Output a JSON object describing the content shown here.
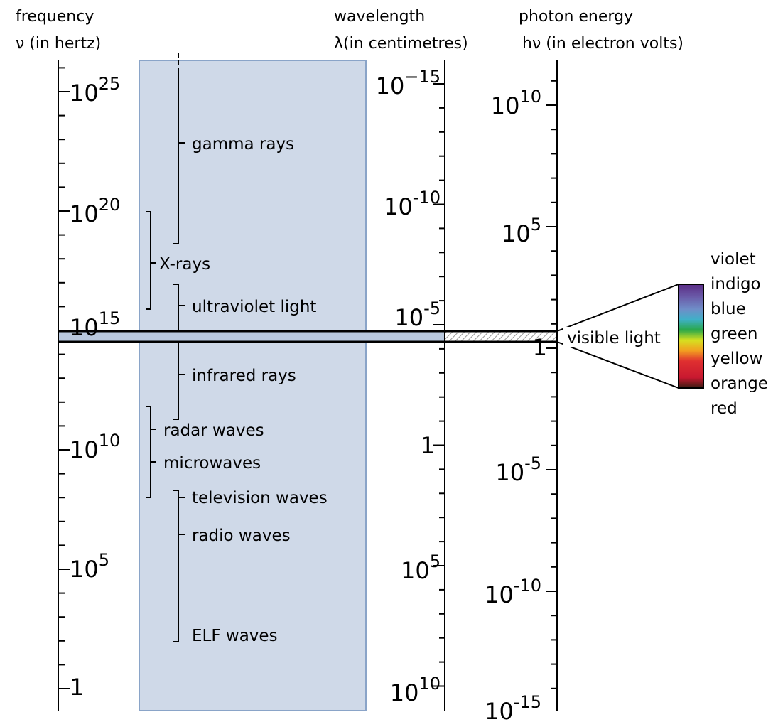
{
  "headers": {
    "frequency": {
      "line1": "frequency",
      "line2": "ν (in hertz)"
    },
    "wavelength": {
      "line1": "wavelength",
      "line2": "λ(in centimetres)"
    },
    "energy": {
      "line1": "photon energy",
      "line2": "hν (in electron volts)"
    }
  },
  "frequency_ticks": [
    {
      "base": "10",
      "exp": "25"
    },
    {
      "base": "10",
      "exp": "20"
    },
    {
      "base": "10",
      "exp": "15"
    },
    {
      "base": "10",
      "exp": "10"
    },
    {
      "base": "10",
      "exp": "5"
    },
    {
      "base": "1",
      "exp": ""
    }
  ],
  "wavelength_ticks": [
    {
      "base": "10",
      "exp": "−15"
    },
    {
      "base": "10",
      "exp": "-10"
    },
    {
      "base": "10",
      "exp": "-5"
    },
    {
      "base": "1",
      "exp": ""
    },
    {
      "base": "10",
      "exp": "5"
    },
    {
      "base": "10",
      "exp": "10"
    }
  ],
  "energy_ticks": [
    {
      "base": "10",
      "exp": "10"
    },
    {
      "base": "10",
      "exp": "5"
    },
    {
      "base": "1",
      "exp": ""
    },
    {
      "base": "10",
      "exp": "-5"
    },
    {
      "base": "10",
      "exp": "-10"
    },
    {
      "base": "10",
      "exp": "-15"
    }
  ],
  "bands": {
    "gamma": "gamma rays",
    "xrays": "X-rays",
    "ultraviolet": "ultraviolet light",
    "infrared": "infrared rays",
    "radar": "radar waves",
    "microwaves": "microwaves",
    "television": "television waves",
    "radio": "radio waves",
    "elf": "ELF waves",
    "visible": "visible light"
  },
  "spectrum_colors": [
    "violet",
    "indigo",
    "blue",
    "green",
    "yellow",
    "orange",
    "red"
  ],
  "colors": {
    "panel": "#cfd9e8",
    "panel_border": "#8aa4c8",
    "visible_band": "#b9c8de"
  }
}
